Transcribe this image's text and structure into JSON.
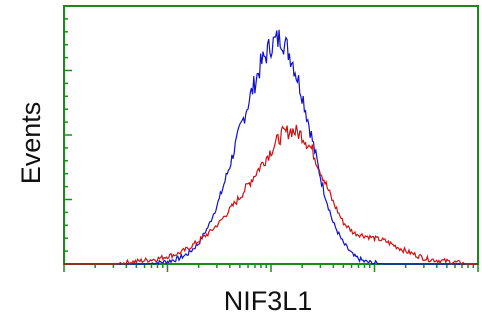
{
  "chart_data": {
    "type": "line",
    "title": "",
    "xlabel": "NIF3L1",
    "ylabel": "Events",
    "x_scale": "log",
    "xlim": [
      1,
      10000
    ],
    "ylim": [
      0,
      100
    ],
    "grid": false,
    "legend": "none",
    "frame_color": "#1a8a1a",
    "x": [
      1,
      1.26,
      1.58,
      2,
      2.51,
      3.16,
      3.98,
      5.01,
      6.31,
      7.94,
      10,
      12.6,
      15.8,
      20,
      25.1,
      31.6,
      39.8,
      50.1,
      63.1,
      79.4,
      100,
      126,
      158,
      200,
      251,
      316,
      398,
      501,
      631,
      794,
      1000,
      1260,
      1580,
      2000,
      2510,
      3160,
      3980,
      5010,
      6310,
      7940,
      10000
    ],
    "series": [
      {
        "color": "#1010d0",
        "values": [
          0,
          0,
          0,
          0,
          0,
          0,
          0,
          0,
          0,
          0.5,
          1,
          2,
          4,
          8,
          15,
          25,
          38,
          52,
          65,
          77,
          85,
          88,
          80,
          66,
          48,
          30,
          16,
          8,
          3,
          1,
          0.3,
          0,
          0,
          0,
          0,
          0,
          0,
          0,
          0,
          0,
          0
        ]
      },
      {
        "color": "#d01010",
        "values": [
          0,
          0,
          0,
          0,
          0,
          0,
          0.5,
          1,
          1.5,
          2,
          3,
          4,
          6,
          9,
          12,
          16,
          21,
          26,
          32,
          38,
          44,
          50,
          52,
          50,
          44,
          34,
          24,
          16,
          12,
          11,
          10,
          9,
          7,
          5,
          3.5,
          2,
          1.5,
          1,
          0.5,
          0,
          0
        ]
      }
    ]
  }
}
